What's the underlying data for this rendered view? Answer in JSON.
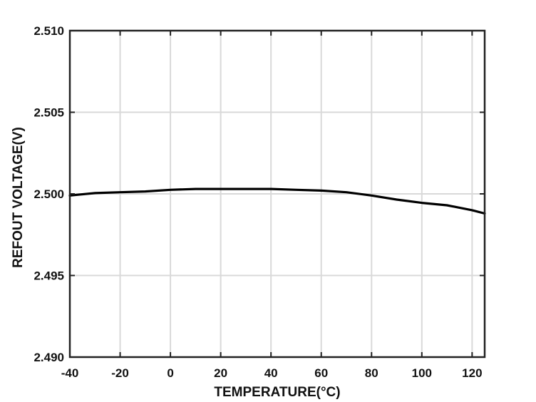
{
  "chart_data": {
    "type": "line",
    "title": "",
    "xlabel": "TEMPERATURE(°C)",
    "ylabel": "REFOUT VOLTAGE(V)",
    "xlim": [
      -40,
      125
    ],
    "ylim": [
      2.49,
      2.51
    ],
    "x_ticks": [
      -40,
      -20,
      0,
      20,
      40,
      60,
      80,
      100,
      120
    ],
    "x_tick_labels": [
      "-40",
      "-20",
      "0",
      "20",
      "40",
      "60",
      "80",
      "100",
      "120"
    ],
    "y_ticks": [
      2.49,
      2.495,
      2.5,
      2.505,
      2.51
    ],
    "y_tick_labels": [
      "2.490",
      "2.495",
      "2.500",
      "2.505",
      "2.510"
    ],
    "grid": true,
    "series": [
      {
        "color": "#000000",
        "x": [
          -40,
          -30,
          -20,
          -10,
          0,
          10,
          20,
          30,
          40,
          50,
          60,
          70,
          80,
          90,
          100,
          110,
          120,
          125
        ],
        "y": [
          2.4999,
          2.50005,
          2.5001,
          2.50015,
          2.50025,
          2.5003,
          2.5003,
          2.5003,
          2.5003,
          2.50025,
          2.5002,
          2.5001,
          2.4999,
          2.49965,
          2.49945,
          2.4993,
          2.499,
          2.4988
        ]
      }
    ]
  }
}
